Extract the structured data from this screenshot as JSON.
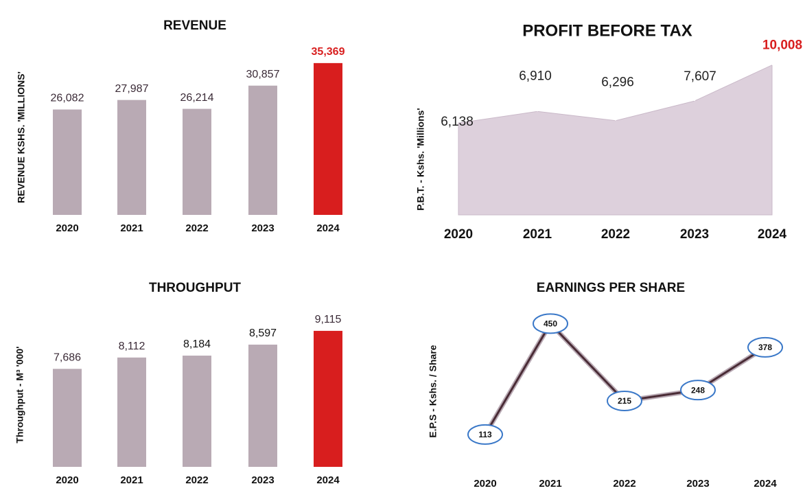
{
  "chart_data": [
    {
      "type": "bar",
      "title": "REVENUE",
      "y_label": "REVENUE KSHS. 'MILLIONS'",
      "categories": [
        "2020",
        "2021",
        "2022",
        "2023",
        "2024"
      ],
      "values": [
        26082,
        27987,
        26214,
        30857,
        35369
      ],
      "value_labels": [
        "26,082",
        "27,987",
        "26,214",
        "30,857",
        "35,369"
      ],
      "colors": [
        "#b9aab4",
        "#b9aab4",
        "#b9aab4",
        "#b9aab4",
        "#d81e1e"
      ],
      "label_colors": [
        "#3a2a36",
        "#3a2a36",
        "#3a2a36",
        "#3a2a36",
        "#d81e1e"
      ],
      "ylim": [
        5000,
        37000
      ]
    },
    {
      "type": "area",
      "title": "PROFIT BEFORE TAX",
      "y_label": "P.B.T. - Kshs. 'Millions'",
      "categories": [
        "2020",
        "2021",
        "2022",
        "2023",
        "2024"
      ],
      "values": [
        6138,
        6910,
        6296,
        7607,
        10008
      ],
      "value_labels": [
        "6,138",
        "6,910",
        "6,296",
        "7,607",
        "10,008"
      ],
      "color": "#ddd0dc",
      "label_colors": [
        "#222222",
        "#222222",
        "#222222",
        "#222222",
        "#d81e1e"
      ],
      "ylim": [
        0,
        10500
      ]
    },
    {
      "type": "bar",
      "title": "THROUGHPUT",
      "y_label": "Throughput - M³ '000'",
      "categories": [
        "2020",
        "2021",
        "2022",
        "2023",
        "2024"
      ],
      "values": [
        7686,
        8112,
        8184,
        8597,
        9115
      ],
      "value_labels": [
        "7,686",
        "8,112",
        "8,184",
        "8,597",
        "9,115"
      ],
      "colors": [
        "#b9aab4",
        "#b9aab4",
        "#b9aab4",
        "#b9aab4",
        "#d81e1e"
      ],
      "label_colors": [
        "#3a2a36",
        "#3a2a36",
        "#111111",
        "#111111",
        "#3a2a36"
      ],
      "ylim": [
        4000,
        9500
      ]
    },
    {
      "type": "line",
      "title": "EARNINGS PER SHARE",
      "y_label": "E.P.S - Kshs. / Share",
      "categories": [
        "2020",
        "2021",
        "2022",
        "2023",
        "2024"
      ],
      "values": [
        113,
        450,
        215,
        248,
        378
      ],
      "color": "#4a2c36",
      "marker_color": "#3a78c8",
      "ylim": [
        0,
        480
      ]
    }
  ]
}
